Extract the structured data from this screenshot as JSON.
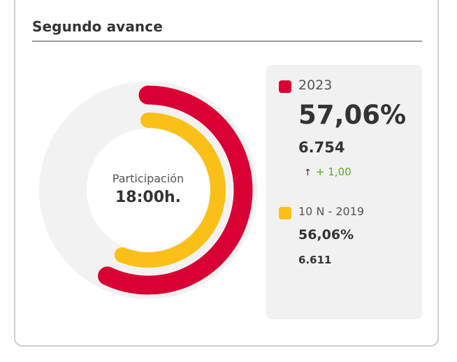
{
  "section": {
    "title": "Segundo avance"
  },
  "center": {
    "label": "Participación",
    "time": "18:00h."
  },
  "series": {
    "current": {
      "label": "2023",
      "percent": "57,06%",
      "votes": "6.754",
      "diff": "+ 1,00",
      "color": "#d90033"
    },
    "previous": {
      "label": "10 N - 2019",
      "percent": "56,06%",
      "votes": "6.611",
      "color": "#fbc017"
    }
  },
  "colors": {
    "track": "#f2f2f2",
    "positive": "#4caf1a"
  },
  "chart_data": {
    "type": "pie",
    "categories": [
      "2023",
      "10 N - 2019"
    ],
    "values": [
      57.06,
      56.06
    ],
    "max": 100
  }
}
